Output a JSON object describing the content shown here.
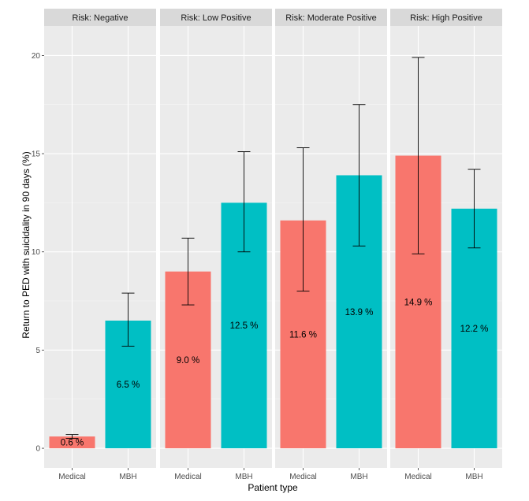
{
  "chart_data": {
    "type": "bar",
    "xlabel": "Patient type",
    "ylabel": "Return to PED with suicidality in 90 days (%)",
    "ylim": [
      -1.0,
      21.5
    ],
    "yticks": [
      0,
      5,
      10,
      15,
      20
    ],
    "categories": [
      "Medical",
      "MBH"
    ],
    "colors": {
      "Medical": "#F8766D",
      "MBH": "#00BFC4"
    },
    "panel_background": "#EBEBEB",
    "strip_background": "#D9D9D9",
    "grid": true,
    "legend": "none",
    "panels": [
      {
        "title": "Risk: Negative",
        "bars": [
          {
            "category": "Medical",
            "value": 0.6,
            "lower": 0.5,
            "upper": 0.7,
            "label": "0.6 %"
          },
          {
            "category": "MBH",
            "value": 6.5,
            "lower": 5.2,
            "upper": 7.9,
            "label": "6.5 %"
          }
        ]
      },
      {
        "title": "Risk: Low Positive",
        "bars": [
          {
            "category": "Medical",
            "value": 9.0,
            "lower": 7.3,
            "upper": 10.7,
            "label": "9.0 %"
          },
          {
            "category": "MBH",
            "value": 12.5,
            "lower": 10.0,
            "upper": 15.1,
            "label": "12.5 %"
          }
        ]
      },
      {
        "title": "Risk: Moderate Positive",
        "bars": [
          {
            "category": "Medical",
            "value": 11.6,
            "lower": 8.0,
            "upper": 15.3,
            "label": "11.6 %"
          },
          {
            "category": "MBH",
            "value": 13.9,
            "lower": 10.3,
            "upper": 17.5,
            "label": "13.9 %"
          }
        ]
      },
      {
        "title": "Risk: High Positive",
        "bars": [
          {
            "category": "Medical",
            "value": 14.9,
            "lower": 9.9,
            "upper": 19.9,
            "label": "14.9 %"
          },
          {
            "category": "MBH",
            "value": 12.2,
            "lower": 10.2,
            "upper": 14.2,
            "label": "12.2 %"
          }
        ]
      }
    ]
  }
}
